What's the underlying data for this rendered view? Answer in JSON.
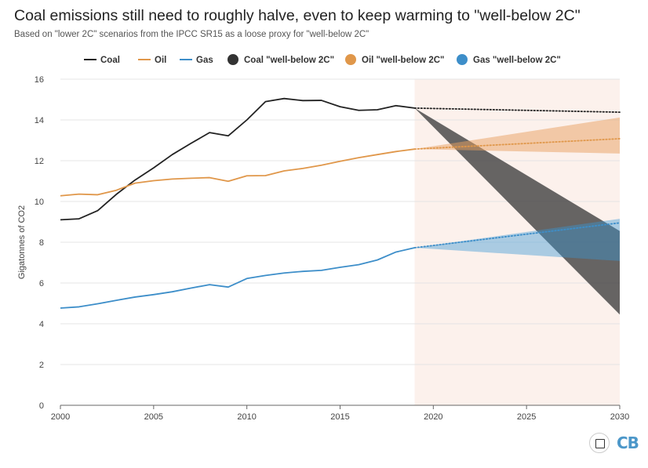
{
  "title": "Coal emissions still need to roughly halve, even to keep warming to \"well-below 2C\"",
  "subtitle": "Based on \"lower 2C\" scenarios from the IPCC SR15 as a loose proxy for \"well-below 2C\"",
  "logo": "CB",
  "expand_icon": "expand-icon",
  "chart_data": {
    "type": "line",
    "ylabel": "Gigatonnes of CO2",
    "xlabel": "",
    "xlim": [
      2000,
      2030
    ],
    "ylim": [
      0,
      16
    ],
    "xticks": [
      2000,
      2005,
      2010,
      2015,
      2020,
      2025,
      2030
    ],
    "yticks": [
      0,
      2,
      4,
      6,
      8,
      10,
      12,
      14,
      16
    ],
    "grid": "horizontal",
    "legend_position": "top",
    "projection_region": [
      2019,
      2030
    ],
    "years": [
      2000,
      2001,
      2002,
      2003,
      2004,
      2005,
      2006,
      2007,
      2008,
      2009,
      2010,
      2011,
      2012,
      2013,
      2014,
      2015,
      2016,
      2017,
      2018,
      2019
    ],
    "series": [
      {
        "name": "Coal",
        "color": "#222222",
        "values": [
          9.1,
          9.15,
          9.55,
          10.35,
          11.05,
          11.65,
          12.3,
          12.85,
          13.38,
          13.22,
          14.0,
          14.9,
          15.05,
          14.95,
          14.96,
          14.65,
          14.47,
          14.5,
          14.7,
          14.58
        ]
      },
      {
        "name": "Oil",
        "color": "#e0974a",
        "values": [
          10.28,
          10.36,
          10.33,
          10.55,
          10.9,
          11.02,
          11.1,
          11.14,
          11.17,
          10.99,
          11.26,
          11.27,
          11.5,
          11.62,
          11.78,
          11.97,
          12.15,
          12.3,
          12.45,
          12.57
        ]
      },
      {
        "name": "Gas",
        "color": "#3d8ec9",
        "values": [
          4.77,
          4.83,
          4.98,
          5.15,
          5.31,
          5.43,
          5.57,
          5.75,
          5.92,
          5.8,
          6.22,
          6.37,
          6.49,
          6.57,
          6.62,
          6.77,
          6.9,
          7.13,
          7.52,
          7.73
        ]
      }
    ],
    "projections": [
      {
        "name": "Coal",
        "color": "#222222",
        "x": [
          2019,
          2030
        ],
        "values": [
          14.58,
          14.38
        ]
      },
      {
        "name": "Oil",
        "color": "#e0974a",
        "x": [
          2019,
          2030
        ],
        "values": [
          12.57,
          13.08
        ]
      },
      {
        "name": "Gas",
        "color": "#3d8ec9",
        "x": [
          2019,
          2030
        ],
        "values": [
          7.73,
          8.95
        ]
      }
    ],
    "ranges": [
      {
        "name": "Coal \"well-below 2C\"",
        "color": "#444444",
        "x": [
          2019,
          2030
        ],
        "low": [
          14.58,
          4.45
        ],
        "high": [
          14.58,
          8.55
        ]
      },
      {
        "name": "Oil \"well-below 2C\"",
        "color": "#e8a060",
        "x": [
          2019,
          2030
        ],
        "low": [
          12.57,
          12.35
        ],
        "high": [
          12.57,
          14.12
        ]
      },
      {
        "name": "Gas \"well-below 2C\"",
        "color": "#3a97d4",
        "x": [
          2019,
          2030
        ],
        "low": [
          7.73,
          7.08
        ],
        "high": [
          7.73,
          9.15
        ]
      }
    ],
    "legend": [
      {
        "label": "Coal",
        "kind": "line",
        "color": "#222222"
      },
      {
        "label": "Oil",
        "kind": "line",
        "color": "#e0974a"
      },
      {
        "label": "Gas",
        "kind": "line",
        "color": "#3d8ec9"
      },
      {
        "label": "Coal \"well-below 2C\"",
        "kind": "dot",
        "color": "#333333"
      },
      {
        "label": "Oil \"well-below 2C\"",
        "kind": "dot",
        "color": "#e0974a"
      },
      {
        "label": "Gas \"well-below 2C\"",
        "kind": "dot",
        "color": "#3d8ec9"
      }
    ]
  }
}
